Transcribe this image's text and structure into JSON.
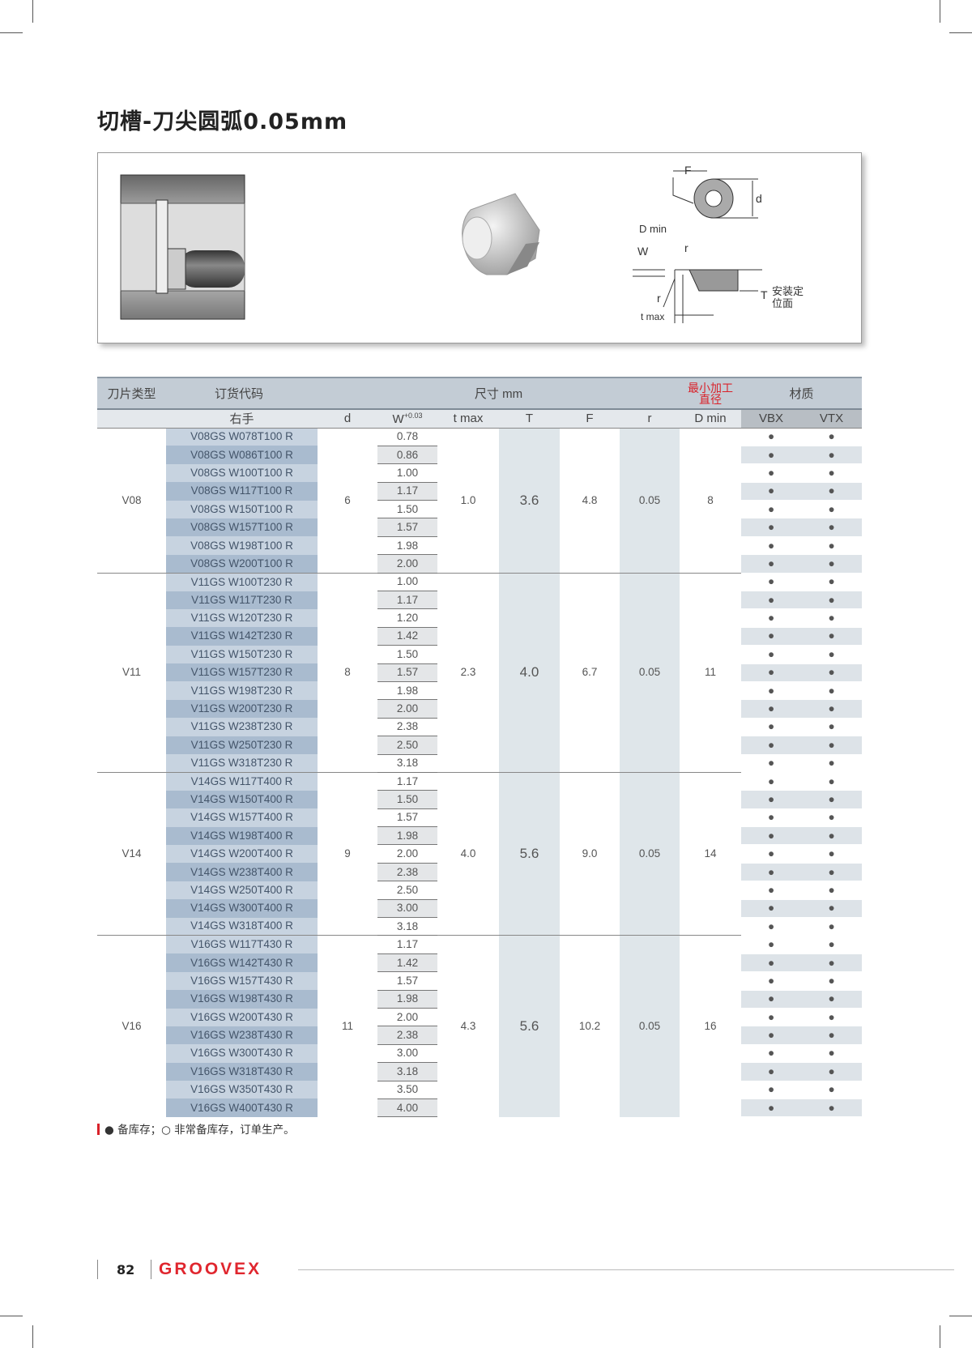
{
  "title": "切槽-刀尖圆弧0.05mm",
  "figure": {
    "labels": {
      "F": "F",
      "d": "d",
      "dmin": "D min",
      "W": "W",
      "r1": "r",
      "r2": "r",
      "tmax": "t max",
      "T": "T",
      "mount1": "安装定",
      "mount2": "位面"
    }
  },
  "table": {
    "header1": {
      "type": "刀片类型",
      "code": "订货代码",
      "size": "尺寸 mm",
      "dmin": "最小加工直径",
      "material": "材质"
    },
    "header2": {
      "hand": "右手",
      "d": "d",
      "w": "W",
      "w_tol": "+0.03",
      "tmax": "t max",
      "T": "T",
      "F": "F",
      "r": "r",
      "dmin": "D min",
      "vbx": "VBX",
      "vtx": "VTX"
    },
    "colors": {
      "dmin_header": "#d9222a"
    },
    "groups": [
      {
        "type": "V08",
        "d": "6",
        "tmax": "1.0",
        "T": "3.6",
        "F": "4.8",
        "r": "0.05",
        "dmin": "8",
        "rows": [
          [
            "V08GS W078T100 R",
            "0.78"
          ],
          [
            "V08GS W086T100 R",
            "0.86"
          ],
          [
            "V08GS W100T100 R",
            "1.00"
          ],
          [
            "V08GS W117T100 R",
            "1.17"
          ],
          [
            "V08GS W150T100 R",
            "1.50"
          ],
          [
            "V08GS W157T100 R",
            "1.57"
          ],
          [
            "V08GS W198T100 R",
            "1.98"
          ],
          [
            "V08GS W200T100 R",
            "2.00"
          ]
        ]
      },
      {
        "type": "V11",
        "d": "8",
        "tmax": "2.3",
        "T": "4.0",
        "F": "6.7",
        "r": "0.05",
        "dmin": "11",
        "rows": [
          [
            "V11GS W100T230 R",
            "1.00"
          ],
          [
            "V11GS W117T230 R",
            "1.17"
          ],
          [
            "V11GS W120T230 R",
            "1.20"
          ],
          [
            "V11GS W142T230 R",
            "1.42"
          ],
          [
            "V11GS W150T230 R",
            "1.50"
          ],
          [
            "V11GS W157T230 R",
            "1.57"
          ],
          [
            "V11GS W198T230 R",
            "1.98"
          ],
          [
            "V11GS W200T230 R",
            "2.00"
          ],
          [
            "V11GS W238T230 R",
            "2.38"
          ],
          [
            "V11GS W250T230 R",
            "2.50"
          ],
          [
            "V11GS W318T230 R",
            "3.18"
          ]
        ]
      },
      {
        "type": "V14",
        "d": "9",
        "tmax": "4.0",
        "T": "5.6",
        "F": "9.0",
        "r": "0.05",
        "dmin": "14",
        "rows": [
          [
            "V14GS W117T400 R",
            "1.17"
          ],
          [
            "V14GS W150T400 R",
            "1.50"
          ],
          [
            "V14GS W157T400 R",
            "1.57"
          ],
          [
            "V14GS W198T400 R",
            "1.98"
          ],
          [
            "V14GS W200T400 R",
            "2.00"
          ],
          [
            "V14GS W238T400 R",
            "2.38"
          ],
          [
            "V14GS W250T400 R",
            "2.50"
          ],
          [
            "V14GS W300T400 R",
            "3.00"
          ],
          [
            "V14GS W318T400 R",
            "3.18"
          ]
        ]
      },
      {
        "type": "V16",
        "d": "11",
        "tmax": "4.3",
        "T": "5.6",
        "F": "10.2",
        "r": "0.05",
        "dmin": "16",
        "rows": [
          [
            "V16GS W117T430 R",
            "1.17"
          ],
          [
            "V16GS W142T430 R",
            "1.42"
          ],
          [
            "V16GS W157T430 R",
            "1.57"
          ],
          [
            "V16GS W198T430 R",
            "1.98"
          ],
          [
            "V16GS W200T430 R",
            "2.00"
          ],
          [
            "V16GS W238T430 R",
            "2.38"
          ],
          [
            "V16GS W300T430 R",
            "3.00"
          ],
          [
            "V16GS W318T430 R",
            "3.18"
          ],
          [
            "V16GS W350T430 R",
            "3.50"
          ],
          [
            "V16GS W400T430 R",
            "4.00"
          ]
        ]
      }
    ],
    "stock_mark": "●"
  },
  "note": "● 备库存；○ 非常备库存，订单生产。",
  "footer": {
    "page": "82",
    "brand": "GROOVEX",
    "brand_color": "#e0262e"
  }
}
